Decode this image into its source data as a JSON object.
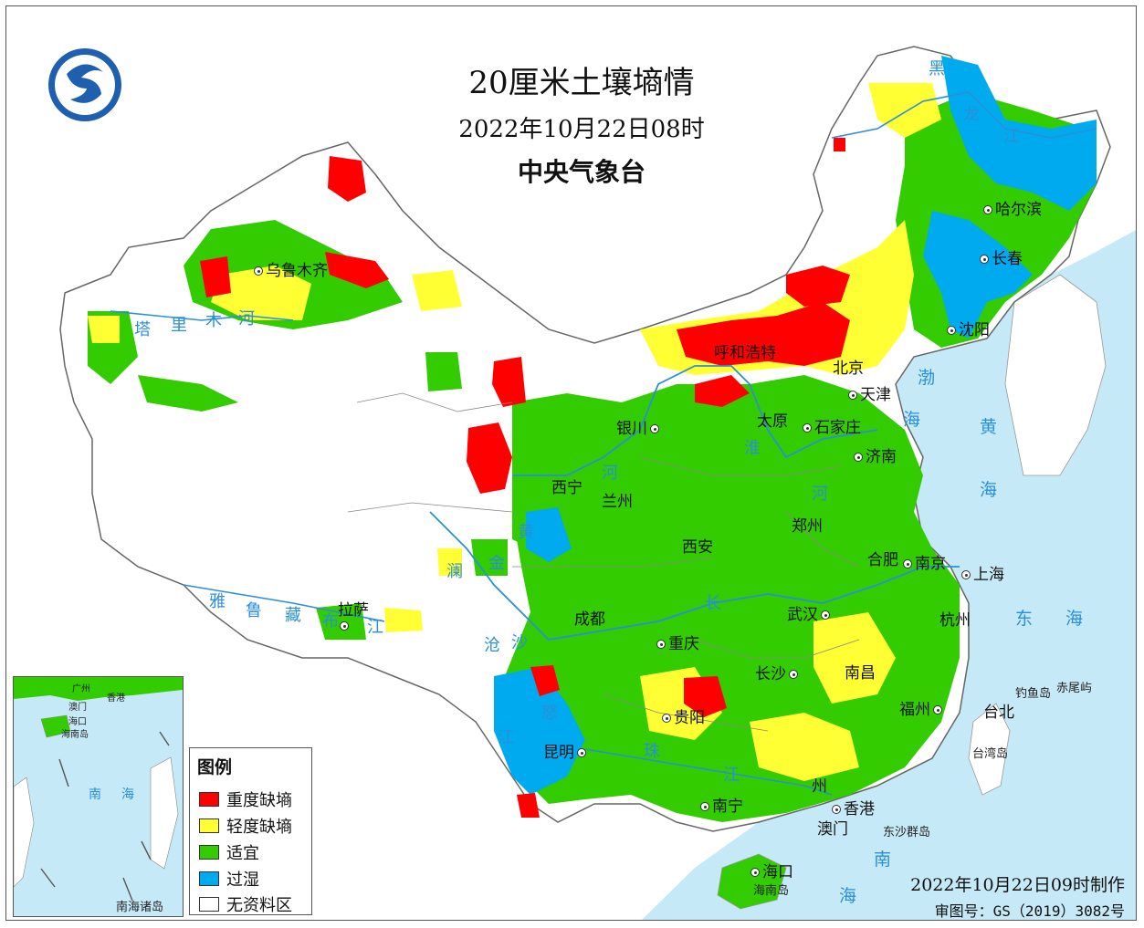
{
  "header": {
    "title": "20厘米土壤墒情",
    "date": "2022年10月22日08时",
    "organization": "中央气象台",
    "logo_icon": "cma-logo-icon"
  },
  "cities": [
    {
      "key": "urumqi",
      "label": "乌鲁木齐"
    },
    {
      "key": "harbin",
      "label": "哈尔滨"
    },
    {
      "key": "changchun",
      "label": "长春"
    },
    {
      "key": "shenyang",
      "label": "沈阳"
    },
    {
      "key": "hohhot",
      "label": "呼和浩特"
    },
    {
      "key": "beijing",
      "label": "北京"
    },
    {
      "key": "tianjin",
      "label": "天津"
    },
    {
      "key": "yinchuan",
      "label": "银川"
    },
    {
      "key": "taiyuan",
      "label": "太原"
    },
    {
      "key": "shijiazhuang",
      "label": "石家庄"
    },
    {
      "key": "jinan",
      "label": "济南"
    },
    {
      "key": "xining",
      "label": "西宁"
    },
    {
      "key": "lanzhou",
      "label": "兰州"
    },
    {
      "key": "xian",
      "label": "西安"
    },
    {
      "key": "zhengzhou",
      "label": "郑州"
    },
    {
      "key": "hefei",
      "label": "合肥"
    },
    {
      "key": "nanjing",
      "label": "南京"
    },
    {
      "key": "shanghai",
      "label": "上海"
    },
    {
      "key": "hangzhou",
      "label": "杭州"
    },
    {
      "key": "chengdu",
      "label": "成都"
    },
    {
      "key": "wuhan",
      "label": "武汉"
    },
    {
      "key": "chongqing",
      "label": "重庆"
    },
    {
      "key": "changsha",
      "label": "长沙"
    },
    {
      "key": "nanchang",
      "label": "南昌"
    },
    {
      "key": "guiyang",
      "label": "贵阳"
    },
    {
      "key": "fuzhou",
      "label": "福州"
    },
    {
      "key": "taipei",
      "label": "台北"
    },
    {
      "key": "kunming",
      "label": "昆明"
    },
    {
      "key": "nanning",
      "label": "南宁"
    },
    {
      "key": "guangzhou",
      "label": "州"
    },
    {
      "key": "hongkong",
      "label": "香港"
    },
    {
      "key": "macau",
      "label": "澳门"
    },
    {
      "key": "haikou",
      "label": "海口"
    },
    {
      "key": "lhasa",
      "label": "拉萨"
    }
  ],
  "rivers": [
    {
      "key": "heilong1",
      "label": "黑"
    },
    {
      "key": "heilong2",
      "label": "龙"
    },
    {
      "key": "heilong3",
      "label": "江"
    },
    {
      "key": "tarim1",
      "label": "塔"
    },
    {
      "key": "tarim2",
      "label": "里"
    },
    {
      "key": "tarim3",
      "label": "木"
    },
    {
      "key": "tarim4",
      "label": "河"
    },
    {
      "key": "yalu1",
      "label": "雅"
    },
    {
      "key": "yalu2",
      "label": "鲁"
    },
    {
      "key": "yalu3",
      "label": "藏"
    },
    {
      "key": "yalu4",
      "label": "布"
    },
    {
      "key": "yalu5",
      "label": "江"
    },
    {
      "key": "huanghe1",
      "label": "黄"
    },
    {
      "key": "huanghe2",
      "label": "河"
    },
    {
      "key": "jinsha1",
      "label": "金"
    },
    {
      "key": "jinsha2",
      "label": "沙"
    },
    {
      "key": "lancang1",
      "label": "澜"
    },
    {
      "key": "lancang2",
      "label": "沧"
    },
    {
      "key": "nu1",
      "label": "怒"
    },
    {
      "key": "changjiang1",
      "label": "长"
    },
    {
      "key": "changjiang2",
      "label": "江"
    },
    {
      "key": "zhujiang1",
      "label": "珠"
    },
    {
      "key": "zhujiang2",
      "label": "江"
    },
    {
      "key": "huai1",
      "label": "淮"
    },
    {
      "key": "yellowriver3",
      "label": "河"
    }
  ],
  "seas": [
    {
      "key": "bohai1",
      "label": "渤"
    },
    {
      "key": "bohai2",
      "label": "海"
    },
    {
      "key": "yellowsea1",
      "label": "黄"
    },
    {
      "key": "yellowsea2",
      "label": "海"
    },
    {
      "key": "eastsea1",
      "label": "东"
    },
    {
      "key": "eastsea2",
      "label": "海"
    },
    {
      "key": "southsea1",
      "label": "南"
    },
    {
      "key": "southsea2",
      "label": "海"
    }
  ],
  "islands": [
    {
      "key": "diaoyu",
      "label": "钓鱼岛"
    },
    {
      "key": "chiwei",
      "label": "赤尾屿"
    },
    {
      "key": "taiwan",
      "label": "台湾岛"
    },
    {
      "key": "dongsha",
      "label": "东沙群岛"
    },
    {
      "key": "hainan",
      "label": "海南岛"
    }
  ],
  "legend": {
    "title": "图例",
    "items": [
      {
        "label": "重度缺墒",
        "color": "#ff0000"
      },
      {
        "label": "轻度缺墒",
        "color": "#ffff33"
      },
      {
        "label": "适宜",
        "color": "#33cc00"
      },
      {
        "label": "过湿",
        "color": "#00aaee"
      },
      {
        "label": "无资料区",
        "color": "#ffffff"
      }
    ]
  },
  "inset": {
    "label": "南海诸岛",
    "places": [
      {
        "key": "guangzhou",
        "label": "广州"
      },
      {
        "key": "hongkong",
        "label": "香港"
      },
      {
        "key": "macau",
        "label": "澳门"
      },
      {
        "key": "haikou",
        "label": "海口"
      },
      {
        "key": "hainan",
        "label": "海南岛"
      },
      {
        "key": "sea1",
        "label": "南"
      },
      {
        "key": "sea2",
        "label": "海"
      }
    ]
  },
  "footer": {
    "made": "2022年10月22日09时制作",
    "review": "审图号：GS（2019）3082号"
  },
  "colors": {
    "severe": "#ff0000",
    "light": "#ffff33",
    "suitable": "#33cc00",
    "wet": "#00aaee",
    "sea": "#c6e9f7",
    "river": "#2a8fd8"
  }
}
